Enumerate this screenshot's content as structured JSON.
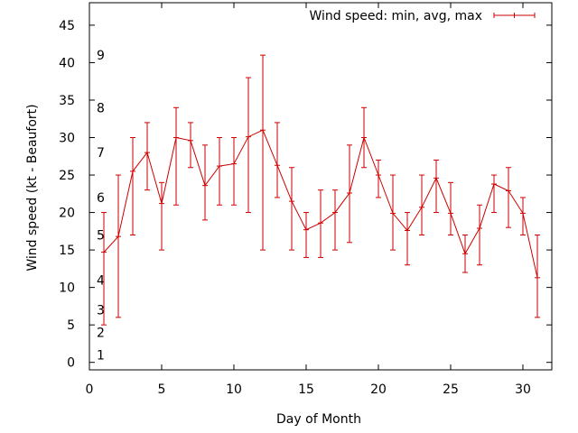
{
  "chart_data": {
    "type": "line",
    "title": "",
    "xlabel": "Day of Month",
    "ylabel": "Wind speed (kt - Beaufort)",
    "xlim": [
      0,
      32
    ],
    "ylim": [
      -1,
      48
    ],
    "xticks": [
      0,
      5,
      10,
      15,
      20,
      25,
      30
    ],
    "yticks": [
      0,
      5,
      10,
      15,
      20,
      25,
      30,
      35,
      40,
      45
    ],
    "grid": false,
    "legend_position": "top-right",
    "beaufort_labels": [
      {
        "label": "1",
        "y": 1
      },
      {
        "label": "2",
        "y": 4
      },
      {
        "label": "3",
        "y": 7
      },
      {
        "label": "4",
        "y": 11
      },
      {
        "label": "5",
        "y": 17
      },
      {
        "label": "6",
        "y": 22
      },
      {
        "label": "7",
        "y": 28
      },
      {
        "label": "8",
        "y": 34
      },
      {
        "label": "9",
        "y": 41
      }
    ],
    "series": [
      {
        "name": "Wind speed: min, avg, max",
        "color": "#cc0000",
        "x": [
          1,
          2,
          3,
          4,
          5,
          6,
          7,
          8,
          9,
          10,
          11,
          12,
          13,
          14,
          15,
          16,
          17,
          18,
          19,
          20,
          21,
          22,
          23,
          24,
          25,
          26,
          27,
          28,
          29,
          30,
          31
        ],
        "avg": [
          14.7,
          16.8,
          25.5,
          28,
          21.2,
          30,
          29.6,
          23.6,
          26.2,
          26.5,
          30.1,
          31,
          26.3,
          21.5,
          17.7,
          18.6,
          20,
          22.6,
          30,
          25,
          19.9,
          17.6,
          20.7,
          24.6,
          19.9,
          14.5,
          17.9,
          23.8,
          22.9,
          19.9,
          11.3
        ],
        "min": [
          5,
          6,
          17,
          23,
          15,
          21,
          26,
          19,
          21,
          21,
          20,
          15,
          22,
          15,
          14,
          14,
          15,
          16,
          26,
          22,
          15,
          13,
          17,
          20,
          17,
          12,
          13,
          20,
          18,
          17,
          6
        ],
        "max": [
          20,
          25,
          30,
          32,
          24,
          34,
          32,
          29,
          30,
          30,
          38,
          41,
          32,
          26,
          20,
          23,
          23,
          29,
          34,
          27,
          25,
          20,
          25,
          27,
          24,
          17,
          21,
          25,
          26,
          22,
          17
        ]
      }
    ]
  }
}
